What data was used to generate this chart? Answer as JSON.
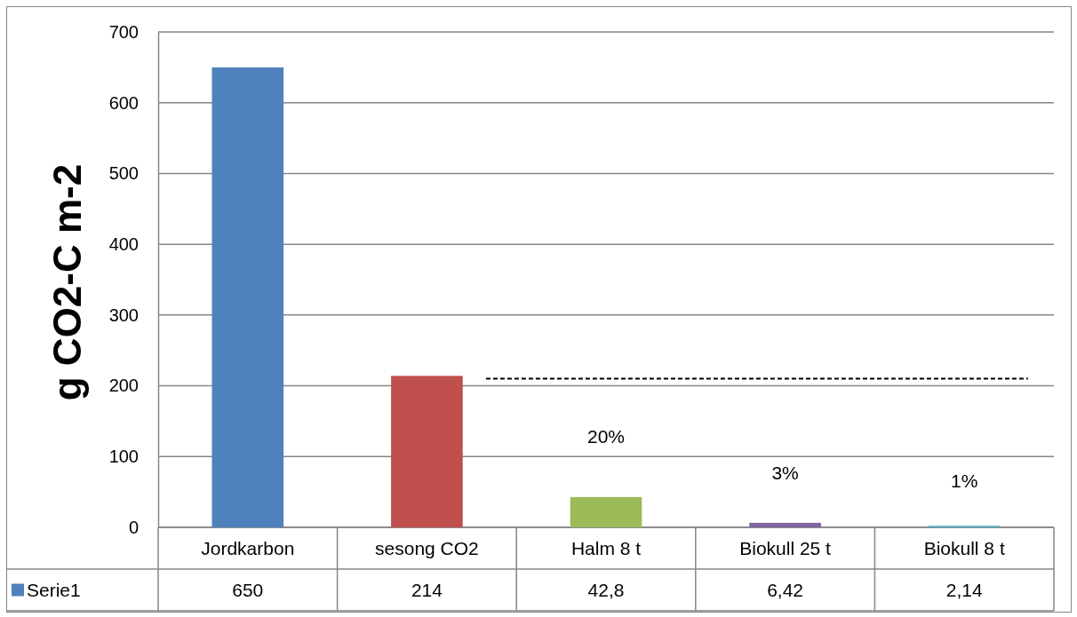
{
  "chart_data": {
    "type": "bar",
    "ylabel": "g CO2-C m-2",
    "categories": [
      "Jordkarbon",
      "sesong CO2",
      "Halm 8 t",
      "Biokull 25 t",
      "Biokull 8 t"
    ],
    "series": [
      {
        "name": "Serie1",
        "color": "#4f81bd",
        "colors": [
          "#4f81bd",
          "#c0504d",
          "#9bbb59",
          "#8064a2",
          "#4bacc6"
        ],
        "values": [
          650,
          214,
          42.8,
          6.42,
          2.14
        ],
        "value_labels": [
          "650",
          "214",
          "42,8",
          "6,42",
          "2,14"
        ]
      }
    ],
    "ylim": [
      0,
      700
    ],
    "yticks": [
      0,
      100,
      200,
      300,
      400,
      500,
      600,
      700
    ],
    "grid": "y",
    "legend": "bottom",
    "ref_lines": [
      {
        "axis": "y",
        "value": 210,
        "color": "#000000",
        "line_style": "dashed"
      }
    ],
    "annotations": [
      "20%",
      "3%",
      "1%"
    ]
  }
}
